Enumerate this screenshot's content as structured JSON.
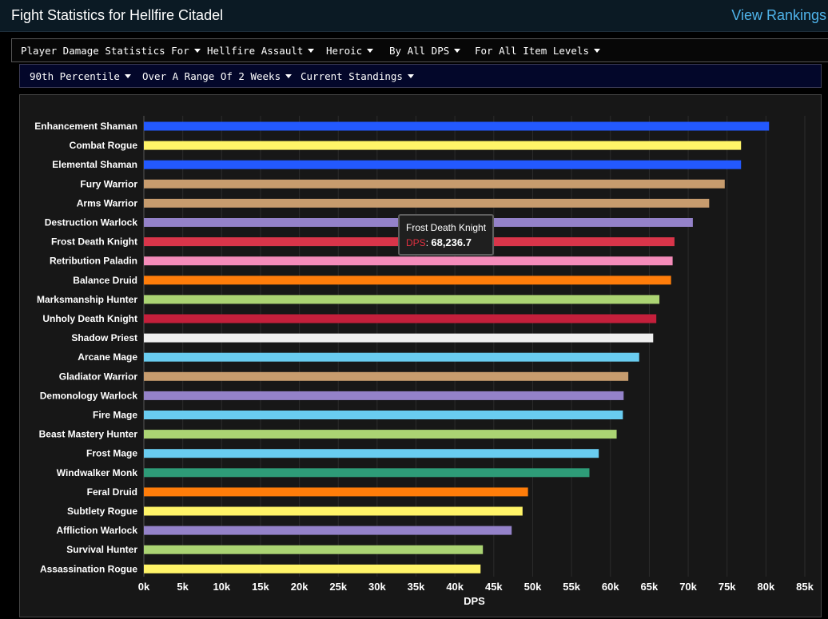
{
  "header": {
    "title": "Fight Statistics for Hellfire Citadel",
    "link": "View Rankings"
  },
  "filters": {
    "row1": [
      "Player Damage Statistics For",
      "Hellfire Assault",
      "Heroic",
      "By All DPS",
      "For All Item Levels"
    ],
    "row2": [
      "90th Percentile",
      "Over A Range Of 2 Weeks",
      "Current Standings"
    ]
  },
  "tooltip": {
    "name": "Frost Death Knight",
    "label": "DPS",
    "value": "68,236.7"
  },
  "chart_data": {
    "type": "bar",
    "orientation": "horizontal",
    "xlabel": "DPS",
    "xlim": [
      0,
      85000
    ],
    "x_ticks": [
      0,
      5000,
      10000,
      15000,
      20000,
      25000,
      30000,
      35000,
      40000,
      45000,
      50000,
      55000,
      60000,
      65000,
      70000,
      75000,
      80000,
      85000
    ],
    "x_tick_labels": [
      "0k",
      "5k",
      "10k",
      "15k",
      "20k",
      "25k",
      "30k",
      "35k",
      "40k",
      "45k",
      "50k",
      "55k",
      "60k",
      "65k",
      "70k",
      "75k",
      "80k",
      "85k"
    ],
    "grid": "vertical",
    "categories": [
      "Enhancement Shaman",
      "Combat Rogue",
      "Elemental Shaman",
      "Fury Warrior",
      "Arms Warrior",
      "Destruction Warlock",
      "Frost Death Knight",
      "Retribution Paladin",
      "Balance Druid",
      "Marksmanship Hunter",
      "Unholy Death Knight",
      "Shadow Priest",
      "Arcane Mage",
      "Gladiator Warrior",
      "Demonology Warlock",
      "Fire Mage",
      "Beast Mastery Hunter",
      "Frost Mage",
      "Windwalker Monk",
      "Feral Druid",
      "Subtlety Rogue",
      "Affliction Warlock",
      "Survival Hunter",
      "Assassination Rogue"
    ],
    "values": [
      80400,
      76800,
      76800,
      74700,
      72700,
      70600,
      68236.7,
      68000,
      67800,
      66300,
      65900,
      65500,
      63700,
      62300,
      61700,
      61600,
      60800,
      58500,
      57300,
      49400,
      48700,
      47300,
      43600,
      43300
    ],
    "colors": [
      "#2359ff",
      "#fff468",
      "#2359ff",
      "#c79c6e",
      "#c79c6e",
      "#9482c9",
      "#d9354a",
      "#f58cba",
      "#ff7d0a",
      "#abd473",
      "#c41f3b",
      "#f0f0f0",
      "#69ccf0",
      "#c79c6e",
      "#9482c9",
      "#69ccf0",
      "#abd473",
      "#69ccf0",
      "#2e9c78",
      "#ff7d0a",
      "#fff468",
      "#9482c9",
      "#abd473",
      "#fff468"
    ]
  }
}
